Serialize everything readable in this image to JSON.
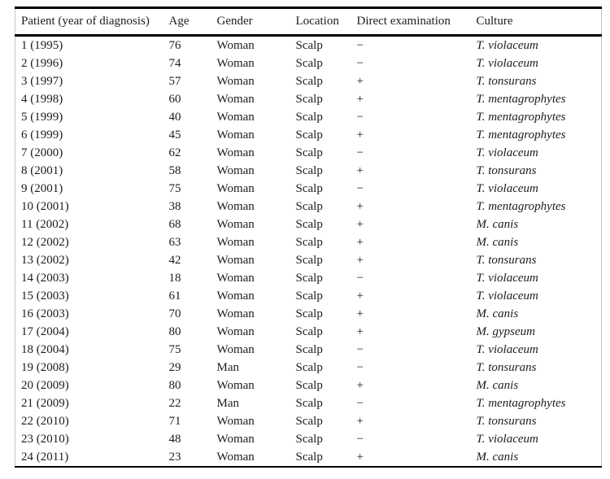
{
  "colors": {
    "background": "#ffffff",
    "text": "#1c1c1c",
    "rule": "#000000",
    "frame": "#c6c6c6"
  },
  "table": {
    "columns": [
      "Patient (year of diagnosis)",
      "Age",
      "Gender",
      "Location",
      "Direct examination",
      "Culture"
    ],
    "rows": [
      [
        "1 (1995)",
        "76",
        "Woman",
        "Scalp",
        "−",
        "T. violaceum"
      ],
      [
        "2 (1996)",
        "74",
        "Woman",
        "Scalp",
        "−",
        "T. violaceum"
      ],
      [
        "3 (1997)",
        "57",
        "Woman",
        "Scalp",
        "+",
        "T. tonsurans"
      ],
      [
        "4 (1998)",
        "60",
        "Woman",
        "Scalp",
        "+",
        "T. mentagrophytes"
      ],
      [
        "5 (1999)",
        "40",
        "Woman",
        "Scalp",
        "−",
        "T. mentagrophytes"
      ],
      [
        "6 (1999)",
        "45",
        "Woman",
        "Scalp",
        "+",
        "T. mentagrophytes"
      ],
      [
        "7 (2000)",
        "62",
        "Woman",
        "Scalp",
        "−",
        "T. violaceum"
      ],
      [
        "8 (2001)",
        "58",
        "Woman",
        "Scalp",
        "+",
        "T. tonsurans"
      ],
      [
        "9 (2001)",
        "75",
        "Woman",
        "Scalp",
        "−",
        "T. violaceum"
      ],
      [
        "10 (2001)",
        "38",
        "Woman",
        "Scalp",
        "+",
        "T. mentagrophytes"
      ],
      [
        "11 (2002)",
        "68",
        "Woman",
        "Scalp",
        "+",
        "M. canis"
      ],
      [
        "12 (2002)",
        "63",
        "Woman",
        "Scalp",
        "+",
        "M. canis"
      ],
      [
        "13 (2002)",
        "42",
        "Woman",
        "Scalp",
        "+",
        "T. tonsurans"
      ],
      [
        "14 (2003)",
        "18",
        "Woman",
        "Scalp",
        "−",
        "T. violaceum"
      ],
      [
        "15 (2003)",
        "61",
        "Woman",
        "Scalp",
        "+",
        "T. violaceum"
      ],
      [
        "16 (2003)",
        "70",
        "Woman",
        "Scalp",
        "+",
        "M. canis"
      ],
      [
        "17 (2004)",
        "80",
        "Woman",
        "Scalp",
        "+",
        "M. gypseum"
      ],
      [
        "18 (2004)",
        "75",
        "Woman",
        "Scalp",
        "−",
        "T. violaceum"
      ],
      [
        "19 (2008)",
        "29",
        "Man",
        "Scalp",
        "−",
        "T. tonsurans"
      ],
      [
        "20 (2009)",
        "80",
        "Woman",
        "Scalp",
        "+",
        "M. canis"
      ],
      [
        "21 (2009)",
        "22",
        "Man",
        "Scalp",
        "−",
        "T. mentagrophytes"
      ],
      [
        "22 (2010)",
        "71",
        "Woman",
        "Scalp",
        "+",
        "T. tonsurans"
      ],
      [
        "23 (2010)",
        "48",
        "Woman",
        "Scalp",
        "−",
        "T. violaceum"
      ],
      [
        "24 (2011)",
        "23",
        "Woman",
        "Scalp",
        "+",
        "M. canis"
      ]
    ]
  }
}
